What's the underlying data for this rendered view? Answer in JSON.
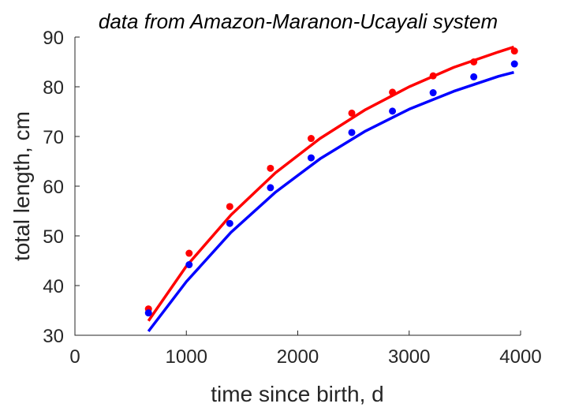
{
  "chart_data": {
    "type": "scatter",
    "title": "data from Amazon-Maranon-Ucayali system",
    "xlabel": "time since birth, d",
    "ylabel": "total length, cm",
    "xlim": [
      0,
      4000
    ],
    "ylim": [
      30,
      90
    ],
    "xticks": [
      0,
      1000,
      2000,
      3000,
      4000
    ],
    "yticks": [
      30,
      40,
      50,
      60,
      70,
      80,
      90
    ],
    "grid": false,
    "series": [
      {
        "kind": "points",
        "color": "#ff0000",
        "x": [
          660,
          1025,
          1390,
          1755,
          2120,
          2485,
          2850,
          3215,
          3580,
          3945
        ],
        "y": [
          35.3,
          46.5,
          55.9,
          63.6,
          69.6,
          74.7,
          78.9,
          82.2,
          85.0,
          87.2
        ]
      },
      {
        "kind": "points",
        "color": "#0000ff",
        "x": [
          660,
          1025,
          1390,
          1755,
          2120,
          2485,
          2850,
          3215,
          3580,
          3945
        ],
        "y": [
          34.5,
          44.2,
          52.5,
          59.7,
          65.7,
          70.8,
          75.1,
          78.8,
          82.0,
          84.6
        ]
      },
      {
        "kind": "line",
        "color": "#ff0000",
        "x": [
          660,
          1000,
          1400,
          1800,
          2200,
          2600,
          3000,
          3400,
          3800,
          3940
        ],
        "y": [
          32.9,
          43.9,
          54.2,
          62.7,
          69.6,
          75.3,
          80.0,
          83.9,
          87.0,
          88.0
        ]
      },
      {
        "kind": "line",
        "color": "#0000ff",
        "x": [
          660,
          1000,
          1400,
          1800,
          2200,
          2600,
          3000,
          3400,
          3800,
          3940
        ],
        "y": [
          30.8,
          40.8,
          50.7,
          58.8,
          65.5,
          71.0,
          75.5,
          79.1,
          82.1,
          82.9
        ]
      }
    ]
  }
}
